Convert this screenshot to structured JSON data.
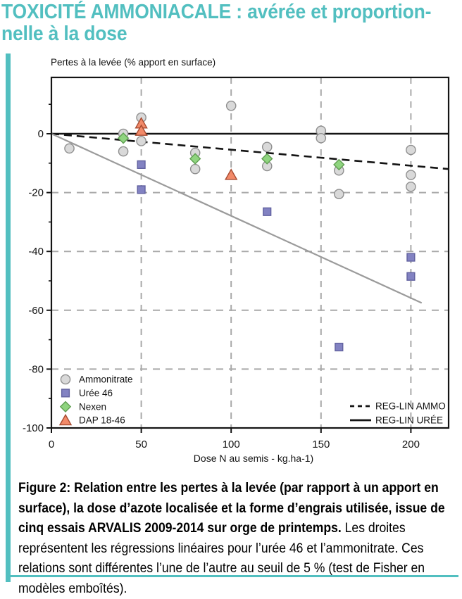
{
  "page": {
    "title_line1": "TOXICITÉ AMMONIACALE : avérée et proportion-",
    "title_line2": "nelle à la dose",
    "accent_color": "#52bfc0"
  },
  "chart_data": {
    "type": "scatter",
    "ylabel": "Pertes à la levée (% apport en surface)",
    "xlabel": "Dose N au semis - kg.ha-1)",
    "xlim": [
      0,
      221
    ],
    "ylim": [
      -100,
      19
    ],
    "xticks": [
      0,
      50,
      100,
      150,
      200
    ],
    "yticks": [
      0,
      -20,
      -40,
      -60,
      -80,
      -100
    ],
    "grid": "dashed gray vertical at x=50,100,150,200 and horizontal at y=-20,-40,-60,-80; solid black zero line",
    "series": [
      {
        "name": "Ammonitrate",
        "marker": "circle",
        "fill": "#d9d9d9",
        "stroke": "#8f8f8f",
        "points": [
          [
            10,
            -5
          ],
          [
            40,
            0
          ],
          [
            40,
            -6
          ],
          [
            50,
            5.5
          ],
          [
            50,
            -2.5
          ],
          [
            80,
            -6.5
          ],
          [
            80,
            -12
          ],
          [
            100,
            9.5
          ],
          [
            120,
            -4.5
          ],
          [
            120,
            -11
          ],
          [
            150,
            1
          ],
          [
            150,
            -1.5
          ],
          [
            160,
            -12.5
          ],
          [
            160,
            -20.5
          ],
          [
            200,
            -5.5
          ],
          [
            200,
            -14
          ],
          [
            200,
            -18
          ]
        ]
      },
      {
        "name": "Urée 46",
        "marker": "square",
        "fill": "#8282c2",
        "stroke": "#61619f",
        "points": [
          [
            50,
            -10.5
          ],
          [
            50,
            -19
          ],
          [
            120,
            -26.5
          ],
          [
            160,
            -72.5
          ],
          [
            200,
            -42
          ],
          [
            200,
            -48.5
          ]
        ]
      },
      {
        "name": "Nexen",
        "marker": "diamond",
        "fill": "#8fd47f",
        "stroke": "#5f9e51",
        "points": [
          [
            40,
            -1.5
          ],
          [
            80,
            -8.5
          ],
          [
            120,
            -8.5
          ],
          [
            160,
            -10.5
          ]
        ]
      },
      {
        "name": "DAP 18-46",
        "marker": "triangle",
        "fill": "#f28a69",
        "stroke": "#a74b31",
        "points": [
          [
            50,
            3.5
          ],
          [
            50,
            1
          ],
          [
            100,
            -14
          ]
        ]
      }
    ],
    "reg_lines": [
      {
        "name": "REG-LIN AMMO",
        "style": "dashed",
        "color": "#141414",
        "from": [
          0,
          0
        ],
        "to": [
          221,
          -12
        ]
      },
      {
        "name": "REG-LIN URÉE",
        "style": "solid",
        "color": "#9b9b9b",
        "from": [
          0,
          0
        ],
        "to": [
          206,
          -57.5
        ]
      }
    ],
    "legend_markers_position": "bottom-left",
    "legend_lines_position": "bottom-right"
  },
  "caption": {
    "bold": "Figure 2: Relation entre les pertes à la levée (par rapport à un apport en surface), la dose d’azote localisée et la forme d’engrais utilisée, issue de cinq essais ARVALIS 2009-2014 sur orge de printemps.",
    "regular": " Les droites représentent les régressions linéaires pour l’urée 46 et l’ammonitrate. Ces relations sont différentes l’une de l’autre au seuil de 5 % (test de Fisher en modèles emboîtés)."
  }
}
